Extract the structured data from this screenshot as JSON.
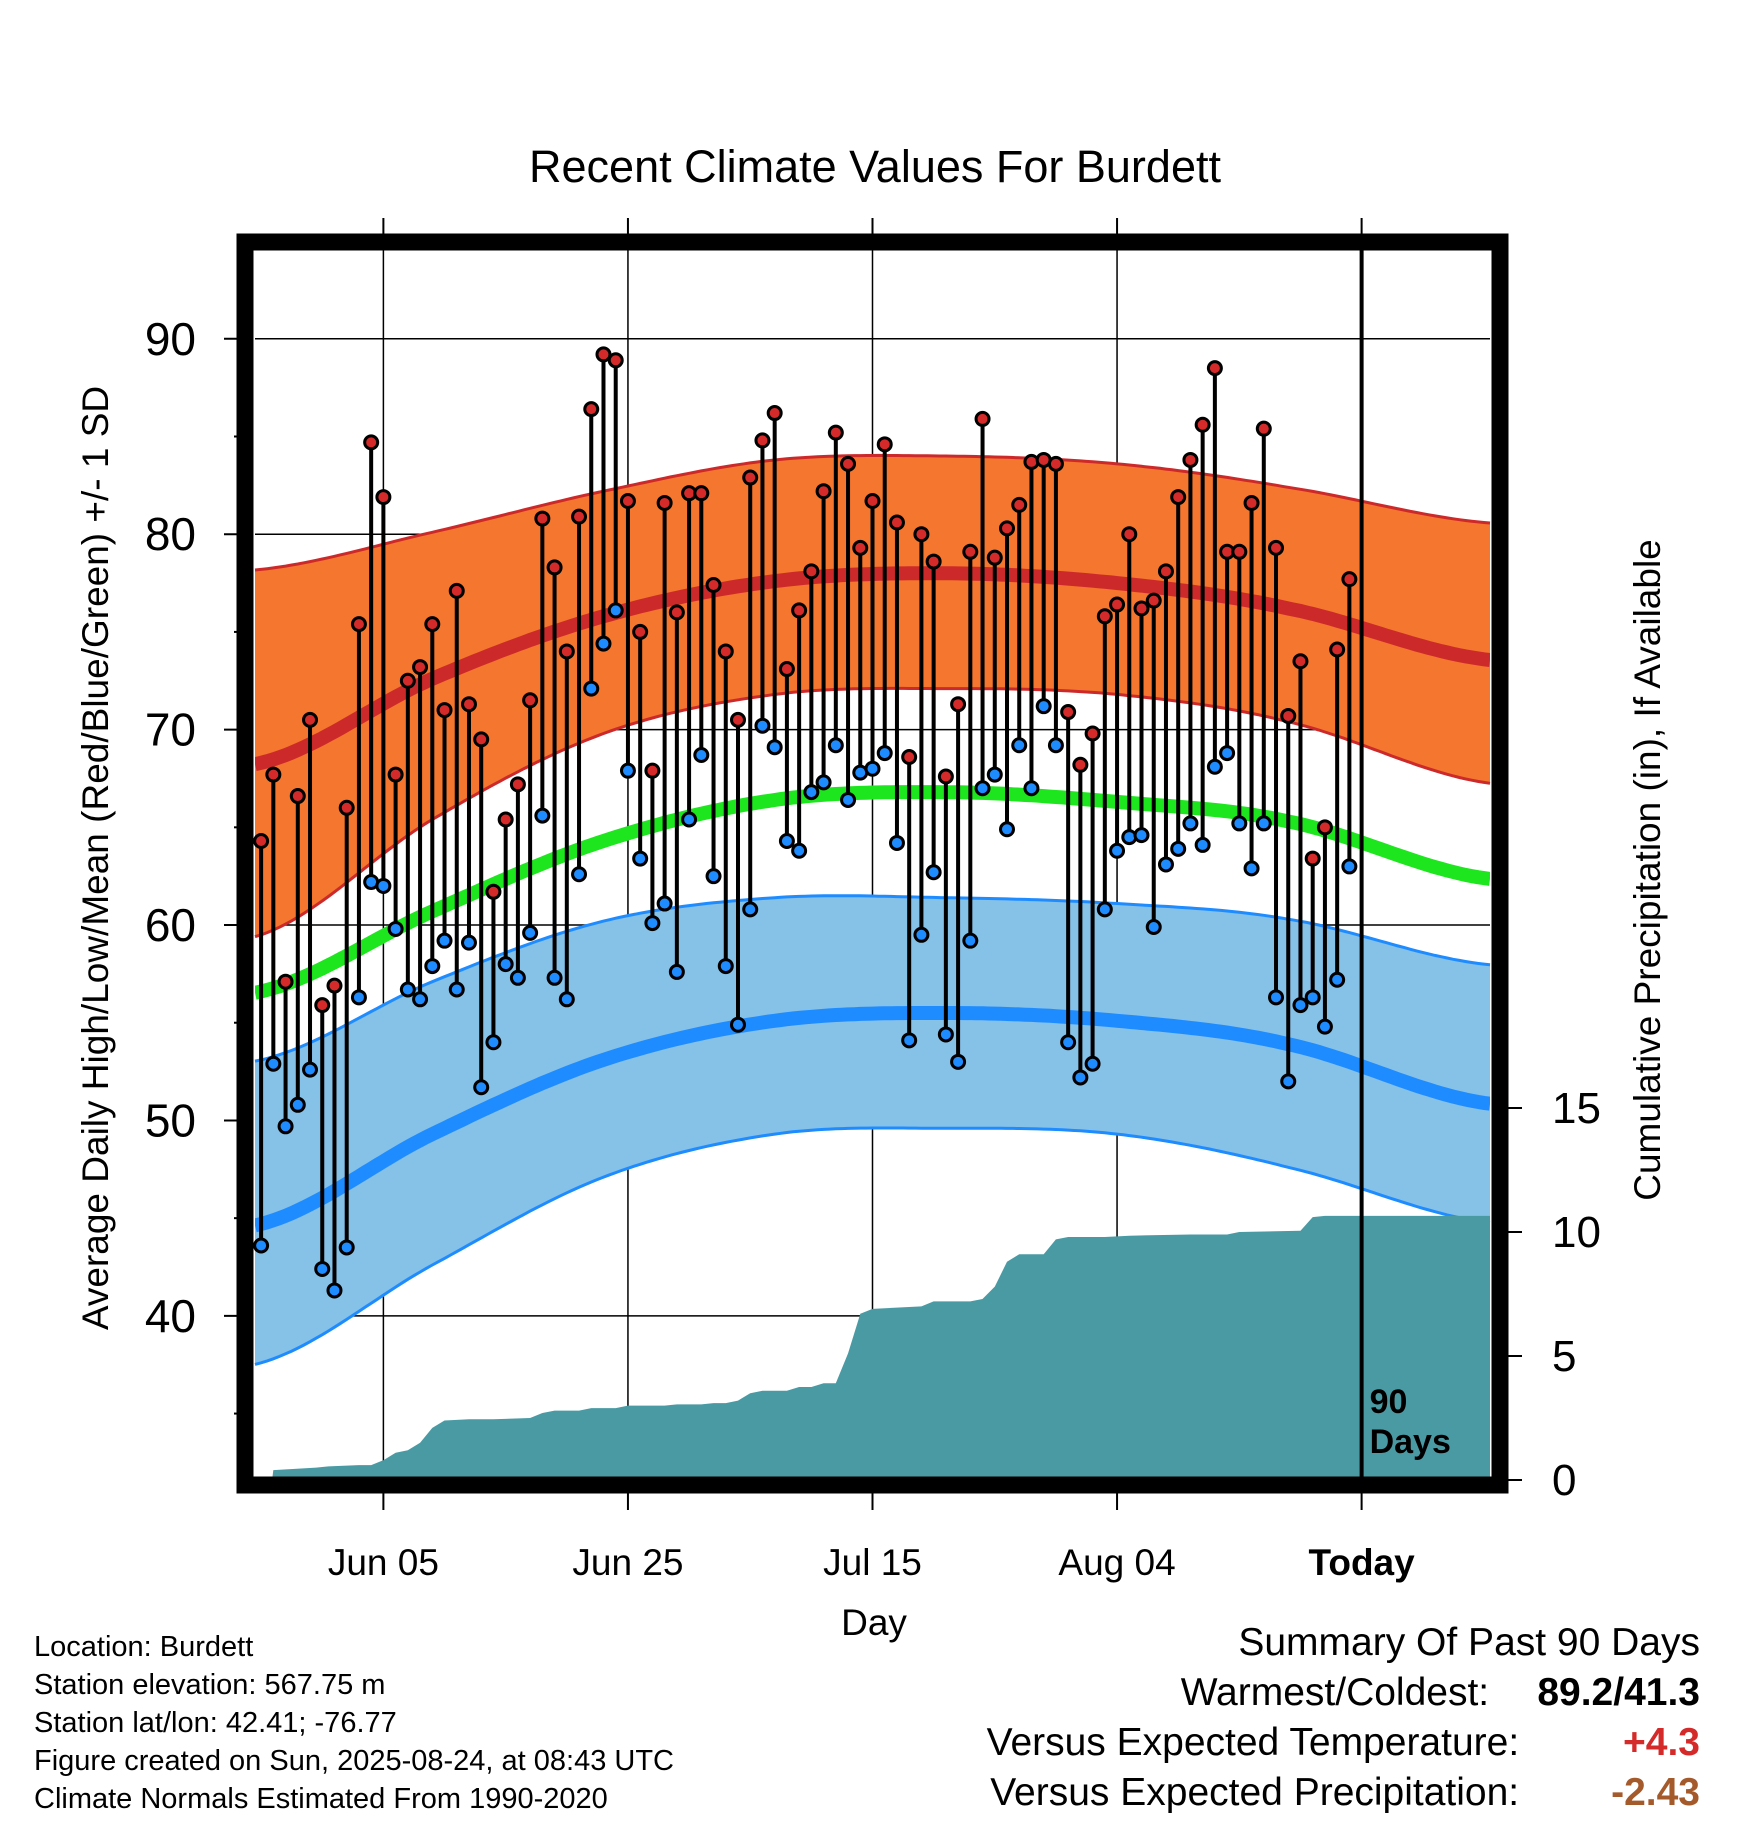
{
  "chart_data": {
    "type": "line",
    "title": "Recent Climate Values For Burdett",
    "xlabel": "Day",
    "ylabel": "Average Daily High/Low/Mean (Red/Blue/Green) +/- 1 SD",
    "y2label": "Cumulative Precipitation (in), If Available",
    "x_tick_labels": [
      "Jun 05",
      "Jun 25",
      "Jul 15",
      "Aug 04",
      "Today"
    ],
    "x_tick_days": [
      11,
      31,
      51,
      71,
      91
    ],
    "y_ticks": [
      40,
      50,
      60,
      70,
      80,
      90
    ],
    "y2_ticks": [
      0,
      5,
      10,
      15
    ],
    "ylim": [
      31.6,
      94.8
    ],
    "xlim": [
      0.5,
      101.5
    ],
    "today_day": 91,
    "today_marker_label": [
      "90",
      "Days"
    ],
    "normal_high": [
      68.3,
      72.6,
      75.8,
      77.6,
      78.0,
      77.5,
      76.2,
      73.6
    ],
    "normal_high_upper": [
      78.2,
      80.1,
      82.2,
      83.8,
      84.0,
      83.6,
      82.4,
      80.6
    ],
    "normal_high_lower": [
      59.5,
      65.4,
      69.8,
      71.8,
      72.1,
      71.8,
      70.4,
      67.3
    ],
    "normal_mean": [
      56.6,
      60.7,
      64.3,
      66.4,
      66.8,
      66.3,
      65.3,
      62.4
    ],
    "normal_low": [
      44.7,
      49.3,
      53.1,
      55.1,
      55.5,
      55.1,
      53.9,
      50.9
    ],
    "normal_low_upper": [
      53.1,
      57.1,
      60.2,
      61.4,
      61.4,
      61.1,
      60.3,
      58.0
    ],
    "normal_low_lower": [
      37.6,
      42.6,
      47.1,
      49.3,
      49.6,
      49.3,
      47.6,
      44.8
    ],
    "normal_days": [
      1,
      15,
      29,
      43,
      57,
      71,
      85,
      101
    ],
    "daily_high": [
      64.3,
      67.7,
      57.1,
      66.6,
      70.5,
      55.9,
      56.9,
      66.0,
      75.4,
      84.7,
      81.9,
      67.7,
      72.5,
      73.2,
      75.4,
      71.0,
      77.1,
      71.3,
      69.5,
      61.7,
      65.4,
      67.2,
      71.5,
      80.8,
      78.3,
      74.0,
      80.9,
      86.4,
      89.2,
      88.9,
      81.7,
      75.0,
      67.9,
      81.6,
      76.0,
      82.1,
      82.1,
      77.4,
      74.0,
      70.5,
      82.9,
      84.8,
      86.2,
      73.1,
      76.1,
      78.1,
      82.2,
      85.2,
      83.6,
      79.3,
      81.7,
      84.6,
      80.6,
      68.6,
      80.0,
      78.6,
      67.6,
      71.3,
      79.1,
      85.9,
      78.8,
      80.3,
      81.5,
      83.7,
      83.8,
      83.6,
      70.9,
      68.2,
      69.8,
      75.8,
      76.4,
      80.0,
      76.2,
      76.6,
      78.1,
      81.9,
      83.8,
      85.6,
      88.5,
      79.1,
      79.1,
      81.6,
      85.4,
      79.3,
      70.7,
      73.5,
      63.4,
      65.0,
      74.1,
      77.7
    ],
    "daily_low": [
      43.6,
      52.9,
      49.7,
      50.8,
      52.6,
      42.4,
      41.3,
      43.5,
      56.3,
      62.2,
      62.0,
      59.8,
      56.7,
      56.2,
      57.9,
      59.2,
      56.7,
      59.1,
      51.7,
      54.0,
      58.0,
      57.3,
      59.6,
      65.6,
      57.3,
      56.2,
      62.6,
      72.1,
      74.4,
      76.1,
      67.9,
      63.4,
      60.1,
      61.1,
      57.6,
      65.4,
      68.7,
      62.5,
      57.9,
      54.9,
      60.8,
      70.2,
      69.1,
      64.3,
      63.8,
      66.8,
      67.3,
      69.2,
      66.4,
      67.8,
      68.0,
      68.8,
      64.2,
      54.1,
      59.5,
      62.7,
      54.4,
      53.0,
      59.2,
      67.0,
      67.7,
      64.9,
      69.2,
      67.0,
      71.2,
      69.2,
      54.0,
      52.2,
      52.9,
      60.8,
      63.8,
      64.5,
      64.6,
      59.9,
      63.1,
      63.9,
      65.2,
      64.1,
      68.1,
      68.8,
      65.2,
      62.9,
      65.2,
      56.3,
      52.0,
      55.9,
      56.3,
      54.8,
      57.2,
      63.0
    ],
    "cum_precip": [
      [
        0.5,
        0
      ],
      [
        1.9,
        0
      ],
      [
        2.0,
        0.4
      ],
      [
        5.5,
        0.5
      ],
      [
        6.5,
        0.55
      ],
      [
        9,
        0.6
      ],
      [
        10,
        0.6
      ],
      [
        11,
        0.8
      ],
      [
        12,
        1.1
      ],
      [
        13,
        1.2
      ],
      [
        14,
        1.5
      ],
      [
        15,
        2.1
      ],
      [
        16,
        2.4
      ],
      [
        18,
        2.45
      ],
      [
        20,
        2.45
      ],
      [
        23,
        2.5
      ],
      [
        24,
        2.7
      ],
      [
        25,
        2.8
      ],
      [
        27,
        2.8
      ],
      [
        28,
        2.9
      ],
      [
        30,
        2.9
      ],
      [
        31,
        3.0
      ],
      [
        34,
        3.0
      ],
      [
        35,
        3.05
      ],
      [
        37,
        3.05
      ],
      [
        38,
        3.1
      ],
      [
        39,
        3.1
      ],
      [
        40,
        3.2
      ],
      [
        41,
        3.5
      ],
      [
        42,
        3.6
      ],
      [
        44,
        3.6
      ],
      [
        45,
        3.75
      ],
      [
        46,
        3.75
      ],
      [
        47,
        3.9
      ],
      [
        48,
        3.9
      ],
      [
        49,
        5.1
      ],
      [
        50,
        6.7
      ],
      [
        51,
        6.9
      ],
      [
        55,
        7.0
      ],
      [
        56,
        7.2
      ],
      [
        59,
        7.2
      ],
      [
        60,
        7.3
      ],
      [
        61,
        7.8
      ],
      [
        62,
        8.8
      ],
      [
        63,
        9.1
      ],
      [
        65,
        9.1
      ],
      [
        66,
        9.7
      ],
      [
        67,
        9.8
      ],
      [
        70,
        9.8
      ],
      [
        72,
        9.85
      ],
      [
        77,
        9.9
      ],
      [
        80,
        9.9
      ],
      [
        81,
        10.0
      ],
      [
        86,
        10.05
      ],
      [
        87,
        10.6
      ],
      [
        88,
        10.65
      ],
      [
        101.5,
        10.65
      ]
    ],
    "precip_color": "#4a9aa4",
    "high_color": "#cc2a2a",
    "high_band_color": "#f5762e",
    "mean_color": "#1ee61e",
    "low_color": "#1e8cff",
    "low_band_color": "#86c1e8"
  },
  "info": {
    "location": "Location: Burdett",
    "elevation": "Station elevation: 567.75 m",
    "latlon": "Station lat/lon: 42.41; -76.77",
    "created": "Figure created on Sun, 2025-08-24, at 08:43 UTC",
    "normals": "Climate Normals Estimated From 1990-2020"
  },
  "summary": {
    "heading": "Summary Of Past 90 Days",
    "warm_cold_label": "Warmest/Coldest:",
    "warm_cold_value": "89.2/41.3",
    "temp_label": "Versus Expected Temperature:",
    "temp_value": "+4.3",
    "temp_color": "#d42a2a",
    "precip_label": "Versus Expected Precipitation:",
    "precip_value": "-2.43",
    "precip_color": "#a55a2c"
  }
}
